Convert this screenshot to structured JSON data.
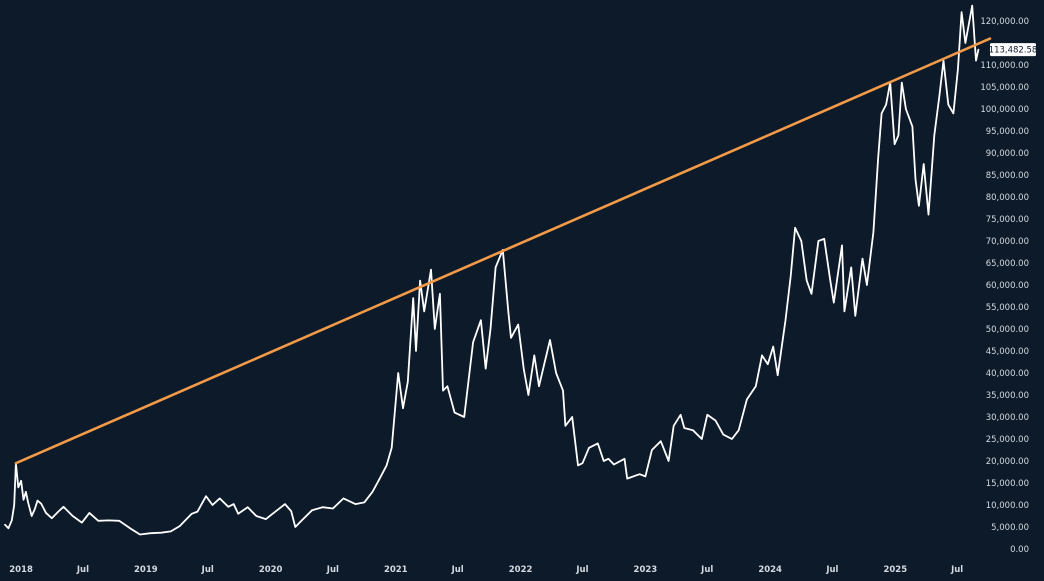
{
  "chart_data": {
    "type": "line",
    "title": "",
    "xlabel": "",
    "ylabel": "",
    "ylim": [
      0,
      122500
    ],
    "xlim": [
      "2017-11-15",
      "2025-10-05"
    ],
    "grid": false,
    "legend": "none",
    "colors": {
      "background": "#0c1a29",
      "price": "#ffffff",
      "trendline": "#f39a48",
      "badge": "#ffffff"
    },
    "y_ticks": [
      {
        "value": 0,
        "label": "0.00"
      },
      {
        "value": 5000,
        "label": "5,000.00"
      },
      {
        "value": 10000,
        "label": "10,000.00"
      },
      {
        "value": 15000,
        "label": "15,000.00"
      },
      {
        "value": 20000,
        "label": "20,000.00"
      },
      {
        "value": 25000,
        "label": "25,000.00"
      },
      {
        "value": 30000,
        "label": "30,000.00"
      },
      {
        "value": 35000,
        "label": "35,000.00"
      },
      {
        "value": 40000,
        "label": "40,000.00"
      },
      {
        "value": 45000,
        "label": "45,000.00"
      },
      {
        "value": 50000,
        "label": "50,000.00"
      },
      {
        "value": 55000,
        "label": "55,000.00"
      },
      {
        "value": 60000,
        "label": "60,000.00"
      },
      {
        "value": 65000,
        "label": "65,000.00"
      },
      {
        "value": 70000,
        "label": "70,000.00"
      },
      {
        "value": 75000,
        "label": "75,000.00"
      },
      {
        "value": 80000,
        "label": "80,000.00"
      },
      {
        "value": 85000,
        "label": "85,000.00"
      },
      {
        "value": 90000,
        "label": "90,000.00"
      },
      {
        "value": 95000,
        "label": "95,000.00"
      },
      {
        "value": 100000,
        "label": "100,000.00"
      },
      {
        "value": 105000,
        "label": "105,000.00"
      },
      {
        "value": 110000,
        "label": "110,000.00"
      },
      {
        "value": 120000,
        "label": "120,000.00"
      }
    ],
    "x_ticks": [
      {
        "value": "2018-01-01",
        "label": "2018"
      },
      {
        "value": "2018-07-01",
        "label": "Jul"
      },
      {
        "value": "2019-01-01",
        "label": "2019"
      },
      {
        "value": "2019-07-01",
        "label": "Jul"
      },
      {
        "value": "2020-01-01",
        "label": "2020"
      },
      {
        "value": "2020-07-01",
        "label": "Jul"
      },
      {
        "value": "2021-01-01",
        "label": "2021"
      },
      {
        "value": "2021-07-01",
        "label": "Jul"
      },
      {
        "value": "2022-01-01",
        "label": "2022"
      },
      {
        "value": "2022-07-01",
        "label": "Jul"
      },
      {
        "value": "2023-01-01",
        "label": "2023"
      },
      {
        "value": "2023-07-01",
        "label": "Jul"
      },
      {
        "value": "2024-01-01",
        "label": "2024"
      },
      {
        "value": "2024-07-01",
        "label": "Jul"
      },
      {
        "value": "2025-01-01",
        "label": "2025"
      },
      {
        "value": "2025-07-01",
        "label": "Jul"
      }
    ],
    "last_price": {
      "value": 113482.58,
      "label": "113,482.58"
    },
    "series": [
      {
        "values": [
          {
            "x": "2017-11-15",
            "y": 5500
          },
          {
            "x": "2017-11-25",
            "y": 4700
          },
          {
            "x": "2017-12-05",
            "y": 6500
          },
          {
            "x": "2017-12-12",
            "y": 10000
          },
          {
            "x": "2017-12-17",
            "y": 19500
          },
          {
            "x": "2017-12-24",
            "y": 14000
          },
          {
            "x": "2018-01-01",
            "y": 15500
          },
          {
            "x": "2018-01-08",
            "y": 11200
          },
          {
            "x": "2018-01-15",
            "y": 13000
          },
          {
            "x": "2018-01-22",
            "y": 10500
          },
          {
            "x": "2018-02-01",
            "y": 7500
          },
          {
            "x": "2018-02-10",
            "y": 9000
          },
          {
            "x": "2018-02-18",
            "y": 11000
          },
          {
            "x": "2018-03-01",
            "y": 10300
          },
          {
            "x": "2018-03-15",
            "y": 8200
          },
          {
            "x": "2018-04-01",
            "y": 7000
          },
          {
            "x": "2018-04-20",
            "y": 8500
          },
          {
            "x": "2018-05-05",
            "y": 9600
          },
          {
            "x": "2018-06-01",
            "y": 7500
          },
          {
            "x": "2018-06-28",
            "y": 6000
          },
          {
            "x": "2018-07-20",
            "y": 8200
          },
          {
            "x": "2018-08-15",
            "y": 6400
          },
          {
            "x": "2018-09-15",
            "y": 6500
          },
          {
            "x": "2018-10-15",
            "y": 6400
          },
          {
            "x": "2018-11-20",
            "y": 4500
          },
          {
            "x": "2018-12-15",
            "y": 3300
          },
          {
            "x": "2019-01-15",
            "y": 3600
          },
          {
            "x": "2019-02-15",
            "y": 3700
          },
          {
            "x": "2019-03-15",
            "y": 4000
          },
          {
            "x": "2019-04-10",
            "y": 5200
          },
          {
            "x": "2019-05-15",
            "y": 8000
          },
          {
            "x": "2019-06-01",
            "y": 8500
          },
          {
            "x": "2019-06-26",
            "y": 12000
          },
          {
            "x": "2019-07-15",
            "y": 10000
          },
          {
            "x": "2019-08-05",
            "y": 11500
          },
          {
            "x": "2019-08-30",
            "y": 9600
          },
          {
            "x": "2019-09-15",
            "y": 10200
          },
          {
            "x": "2019-09-28",
            "y": 8000
          },
          {
            "x": "2019-10-26",
            "y": 9500
          },
          {
            "x": "2019-11-20",
            "y": 7500
          },
          {
            "x": "2019-12-18",
            "y": 6800
          },
          {
            "x": "2020-01-15",
            "y": 8500
          },
          {
            "x": "2020-02-12",
            "y": 10200
          },
          {
            "x": "2020-03-01",
            "y": 8600
          },
          {
            "x": "2020-03-13",
            "y": 5000
          },
          {
            "x": "2020-04-01",
            "y": 6500
          },
          {
            "x": "2020-05-01",
            "y": 8800
          },
          {
            "x": "2020-06-01",
            "y": 9500
          },
          {
            "x": "2020-07-01",
            "y": 9200
          },
          {
            "x": "2020-08-01",
            "y": 11500
          },
          {
            "x": "2020-09-05",
            "y": 10200
          },
          {
            "x": "2020-10-01",
            "y": 10600
          },
          {
            "x": "2020-10-25",
            "y": 13000
          },
          {
            "x": "2020-11-15",
            "y": 16000
          },
          {
            "x": "2020-12-05",
            "y": 19000
          },
          {
            "x": "2020-12-20",
            "y": 23000
          },
          {
            "x": "2021-01-08",
            "y": 40000
          },
          {
            "x": "2021-01-22",
            "y": 32000
          },
          {
            "x": "2021-02-05",
            "y": 38000
          },
          {
            "x": "2021-02-21",
            "y": 57000
          },
          {
            "x": "2021-03-01",
            "y": 45000
          },
          {
            "x": "2021-03-13",
            "y": 61000
          },
          {
            "x": "2021-03-25",
            "y": 54000
          },
          {
            "x": "2021-04-14",
            "y": 63500
          },
          {
            "x": "2021-04-25",
            "y": 50000
          },
          {
            "x": "2021-05-10",
            "y": 58000
          },
          {
            "x": "2021-05-19",
            "y": 36000
          },
          {
            "x": "2021-06-01",
            "y": 37000
          },
          {
            "x": "2021-06-22",
            "y": 31000
          },
          {
            "x": "2021-07-20",
            "y": 30000
          },
          {
            "x": "2021-08-15",
            "y": 47000
          },
          {
            "x": "2021-09-07",
            "y": 52000
          },
          {
            "x": "2021-09-21",
            "y": 41000
          },
          {
            "x": "2021-10-05",
            "y": 50000
          },
          {
            "x": "2021-10-20",
            "y": 64000
          },
          {
            "x": "2021-11-10",
            "y": 68000
          },
          {
            "x": "2021-11-26",
            "y": 54000
          },
          {
            "x": "2021-12-04",
            "y": 48000
          },
          {
            "x": "2021-12-25",
            "y": 51000
          },
          {
            "x": "2022-01-10",
            "y": 41000
          },
          {
            "x": "2022-01-24",
            "y": 35000
          },
          {
            "x": "2022-02-10",
            "y": 44000
          },
          {
            "x": "2022-02-24",
            "y": 37000
          },
          {
            "x": "2022-03-28",
            "y": 47500
          },
          {
            "x": "2022-04-15",
            "y": 40000
          },
          {
            "x": "2022-05-05",
            "y": 36000
          },
          {
            "x": "2022-05-12",
            "y": 28000
          },
          {
            "x": "2022-06-01",
            "y": 30000
          },
          {
            "x": "2022-06-18",
            "y": 19000
          },
          {
            "x": "2022-07-01",
            "y": 19500
          },
          {
            "x": "2022-07-20",
            "y": 23000
          },
          {
            "x": "2022-08-15",
            "y": 24000
          },
          {
            "x": "2022-09-01",
            "y": 20000
          },
          {
            "x": "2022-09-15",
            "y": 20500
          },
          {
            "x": "2022-10-01",
            "y": 19200
          },
          {
            "x": "2022-11-01",
            "y": 20500
          },
          {
            "x": "2022-11-09",
            "y": 16000
          },
          {
            "x": "2022-12-15",
            "y": 17000
          },
          {
            "x": "2023-01-01",
            "y": 16500
          },
          {
            "x": "2023-01-20",
            "y": 22500
          },
          {
            "x": "2023-02-15",
            "y": 24500
          },
          {
            "x": "2023-03-10",
            "y": 20000
          },
          {
            "x": "2023-03-25",
            "y": 28000
          },
          {
            "x": "2023-04-14",
            "y": 30500
          },
          {
            "x": "2023-04-25",
            "y": 27500
          },
          {
            "x": "2023-05-20",
            "y": 27000
          },
          {
            "x": "2023-06-15",
            "y": 25000
          },
          {
            "x": "2023-07-01",
            "y": 30500
          },
          {
            "x": "2023-07-25",
            "y": 29200
          },
          {
            "x": "2023-08-17",
            "y": 26000
          },
          {
            "x": "2023-09-11",
            "y": 25000
          },
          {
            "x": "2023-10-01",
            "y": 27000
          },
          {
            "x": "2023-10-25",
            "y": 34000
          },
          {
            "x": "2023-11-20",
            "y": 37000
          },
          {
            "x": "2023-12-08",
            "y": 44000
          },
          {
            "x": "2023-12-25",
            "y": 42000
          },
          {
            "x": "2024-01-10",
            "y": 46000
          },
          {
            "x": "2024-01-23",
            "y": 39500
          },
          {
            "x": "2024-02-15",
            "y": 52000
          },
          {
            "x": "2024-03-01",
            "y": 62000
          },
          {
            "x": "2024-03-14",
            "y": 73000
          },
          {
            "x": "2024-04-01",
            "y": 70000
          },
          {
            "x": "2024-04-17",
            "y": 61000
          },
          {
            "x": "2024-05-01",
            "y": 58000
          },
          {
            "x": "2024-05-21",
            "y": 70000
          },
          {
            "x": "2024-06-07",
            "y": 70500
          },
          {
            "x": "2024-06-25",
            "y": 61000
          },
          {
            "x": "2024-07-05",
            "y": 56000
          },
          {
            "x": "2024-07-29",
            "y": 69000
          },
          {
            "x": "2024-08-05",
            "y": 54000
          },
          {
            "x": "2024-08-25",
            "y": 64000
          },
          {
            "x": "2024-09-06",
            "y": 53000
          },
          {
            "x": "2024-09-27",
            "y": 66000
          },
          {
            "x": "2024-10-10",
            "y": 60000
          },
          {
            "x": "2024-10-29",
            "y": 72000
          },
          {
            "x": "2024-11-12",
            "y": 89000
          },
          {
            "x": "2024-11-22",
            "y": 99000
          },
          {
            "x": "2024-12-05",
            "y": 101000
          },
          {
            "x": "2024-12-17",
            "y": 106000
          },
          {
            "x": "2024-12-30",
            "y": 92000
          },
          {
            "x": "2025-01-10",
            "y": 94000
          },
          {
            "x": "2025-01-20",
            "y": 106000
          },
          {
            "x": "2025-02-01",
            "y": 100000
          },
          {
            "x": "2025-02-20",
            "y": 96000
          },
          {
            "x": "2025-03-01",
            "y": 84000
          },
          {
            "x": "2025-03-11",
            "y": 78000
          },
          {
            "x": "2025-03-25",
            "y": 87500
          },
          {
            "x": "2025-04-08",
            "y": 76000
          },
          {
            "x": "2025-04-25",
            "y": 94000
          },
          {
            "x": "2025-05-10",
            "y": 103000
          },
          {
            "x": "2025-05-22",
            "y": 111000
          },
          {
            "x": "2025-06-05",
            "y": 101000
          },
          {
            "x": "2025-06-20",
            "y": 99000
          },
          {
            "x": "2025-07-03",
            "y": 109000
          },
          {
            "x": "2025-07-14",
            "y": 122000
          },
          {
            "x": "2025-07-25",
            "y": 115000
          },
          {
            "x": "2025-08-14",
            "y": 123500
          },
          {
            "x": "2025-08-25",
            "y": 111000
          },
          {
            "x": "2025-09-01",
            "y": 113482.58
          }
        ]
      },
      {
        "values": [
          {
            "x": "2017-12-17",
            "y": 19500
          },
          {
            "x": "2025-10-05",
            "y": 116000
          }
        ]
      }
    ]
  }
}
